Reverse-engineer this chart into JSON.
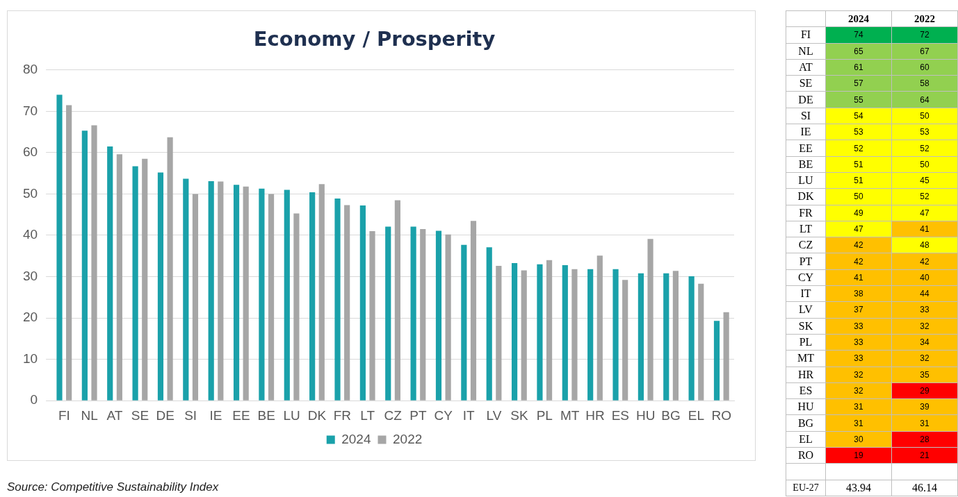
{
  "chart_data": [
    {
      "type": "bar",
      "title": "Economy / Prosperity",
      "categories": [
        "FI",
        "NL",
        "AT",
        "SE",
        "DE",
        "SI",
        "IE",
        "EE",
        "BE",
        "LU",
        "DK",
        "FR",
        "LT",
        "CZ",
        "PT",
        "CY",
        "IT",
        "LV",
        "SK",
        "PL",
        "MT",
        "HR",
        "ES",
        "HU",
        "BG",
        "EL",
        "RO"
      ],
      "series": [
        {
          "name": "2024",
          "color": "#1aa1aa",
          "values": [
            74,
            65.3,
            61.5,
            56.7,
            55.2,
            53.7,
            53.1,
            52.2,
            51.3,
            51,
            50.4,
            48.9,
            47.2,
            42.1,
            42.1,
            41.1,
            37.7,
            37.1,
            33.3,
            33,
            32.8,
            31.8,
            31.8,
            30.8,
            30.8,
            30.1,
            19.3
          ]
        },
        {
          "name": "2022",
          "color": "#a6a6a6",
          "values": [
            71.5,
            66.6,
            59.6,
            58.5,
            63.7,
            50,
            53,
            51.8,
            50,
            45.3,
            52.4,
            47.3,
            41,
            48.5,
            41.5,
            40.2,
            43.5,
            32.6,
            31.5,
            34,
            31.8,
            35.1,
            29.2,
            39.1,
            31.4,
            28.3,
            21.4
          ]
        }
      ],
      "ylim": [
        0,
        80
      ],
      "yticks": [
        0,
        10,
        20,
        30,
        40,
        50,
        60,
        70,
        80
      ],
      "grid": "y",
      "legend": "bottom",
      "annotations": [
        "Source: Competitive Sustainability Index"
      ]
    },
    {
      "type": "heatmap",
      "categories": [
        "2024",
        "2022"
      ],
      "y_categories": [
        "FI",
        "NL",
        "AT",
        "SE",
        "DE",
        "SI",
        "IE",
        "EE",
        "BE",
        "LU",
        "DK",
        "FR",
        "LT",
        "CZ",
        "PT",
        "CY",
        "IT",
        "LV",
        "SK",
        "PL",
        "MT",
        "HR",
        "ES",
        "HU",
        "BG",
        "EL",
        "RO"
      ],
      "cells": [
        [
          74,
          72
        ],
        [
          65,
          67
        ],
        [
          61,
          60
        ],
        [
          57,
          58
        ],
        [
          55,
          64
        ],
        [
          54,
          50
        ],
        [
          53,
          53
        ],
        [
          52,
          52
        ],
        [
          51,
          50
        ],
        [
          51,
          45
        ],
        [
          50,
          52
        ],
        [
          49,
          47
        ],
        [
          47,
          41
        ],
        [
          42,
          48
        ],
        [
          42,
          42
        ],
        [
          41,
          40
        ],
        [
          38,
          44
        ],
        [
          37,
          33
        ],
        [
          33,
          32
        ],
        [
          33,
          34
        ],
        [
          33,
          32
        ],
        [
          32,
          35
        ],
        [
          32,
          29
        ],
        [
          31,
          39
        ],
        [
          31,
          31
        ],
        [
          30,
          28
        ],
        [
          19,
          21
        ]
      ],
      "colors": [
        [
          "#00b050",
          "#00b050"
        ],
        [
          "#92d050",
          "#92d050"
        ],
        [
          "#92d050",
          "#92d050"
        ],
        [
          "#92d050",
          "#92d050"
        ],
        [
          "#92d050",
          "#92d050"
        ],
        [
          "#ffff00",
          "#ffff00"
        ],
        [
          "#ffff00",
          "#ffff00"
        ],
        [
          "#ffff00",
          "#ffff00"
        ],
        [
          "#ffff00",
          "#ffff00"
        ],
        [
          "#ffff00",
          "#ffff00"
        ],
        [
          "#ffff00",
          "#ffff00"
        ],
        [
          "#ffff00",
          "#ffff00"
        ],
        [
          "#ffff00",
          "#ffc000"
        ],
        [
          "#ffc000",
          "#ffff00"
        ],
        [
          "#ffc000",
          "#ffc000"
        ],
        [
          "#ffc000",
          "#ffc000"
        ],
        [
          "#ffc000",
          "#ffc000"
        ],
        [
          "#ffc000",
          "#ffc000"
        ],
        [
          "#ffc000",
          "#ffc000"
        ],
        [
          "#ffc000",
          "#ffc000"
        ],
        [
          "#ffc000",
          "#ffc000"
        ],
        [
          "#ffc000",
          "#ffc000"
        ],
        [
          "#ffc000",
          "#ff0000"
        ],
        [
          "#ffc000",
          "#ffc000"
        ],
        [
          "#ffc000",
          "#ffc000"
        ],
        [
          "#ffc000",
          "#ff0000"
        ],
        [
          "#ff0000",
          "#ff0000"
        ]
      ],
      "data_labels": true,
      "annotations": [
        "EU-27",
        "43.94",
        "46.14"
      ]
    }
  ]
}
